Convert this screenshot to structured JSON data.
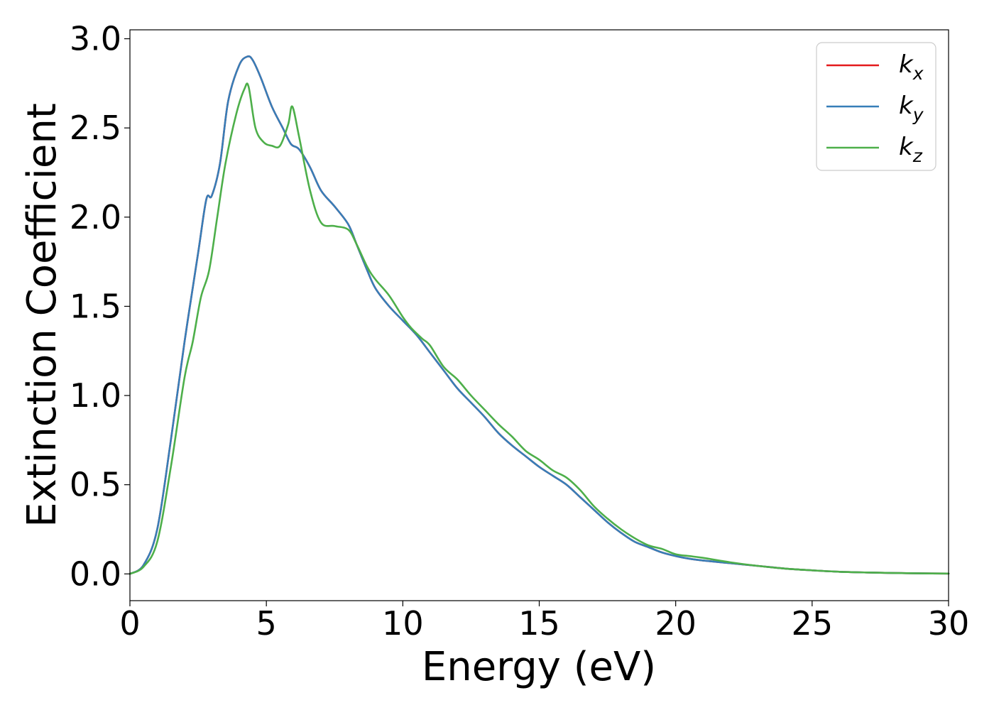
{
  "chart_data": {
    "type": "line",
    "title": "",
    "xlabel": "Energy (eV)",
    "ylabel": "Extinction Coefficient",
    "xlim": [
      0,
      30
    ],
    "ylim": [
      -0.15,
      3.05
    ],
    "xticks": [
      0,
      5,
      10,
      15,
      20,
      25,
      30
    ],
    "xtick_labels": [
      "0",
      "5",
      "10",
      "15",
      "20",
      "25",
      "30"
    ],
    "yticks": [
      0.0,
      0.5,
      1.0,
      1.5,
      2.0,
      2.5,
      3.0
    ],
    "ytick_labels": [
      "0.0",
      "0.5",
      "1.0",
      "1.5",
      "2.0",
      "2.5",
      "3.0"
    ],
    "grid": false,
    "legend_position": "top-right",
    "series": [
      {
        "name": "k_x",
        "legend_base": "k",
        "legend_sub": "x",
        "color": "#e41a1c",
        "x": [
          0,
          0.5,
          1.0,
          1.5,
          2.0,
          2.5,
          2.8,
          3.0,
          3.3,
          3.6,
          4.0,
          4.3,
          4.5,
          4.8,
          5.2,
          5.6,
          5.9,
          6.2,
          6.6,
          7.0,
          7.5,
          8.0,
          8.3,
          8.7,
          9.0,
          9.5,
          10.0,
          10.5,
          11.0,
          11.5,
          12.0,
          12.5,
          13.0,
          13.5,
          14.0,
          14.5,
          15.0,
          15.5,
          16.0,
          16.5,
          17.0,
          17.5,
          18.0,
          18.5,
          19.0,
          19.5,
          20.0,
          20.5,
          21.0,
          22.0,
          23.0,
          24.0,
          25.0,
          26.0,
          27.0,
          28.0,
          29.0,
          30.0
        ],
        "y": [
          0.0,
          0.05,
          0.25,
          0.75,
          1.3,
          1.8,
          2.1,
          2.12,
          2.3,
          2.65,
          2.85,
          2.9,
          2.88,
          2.78,
          2.62,
          2.5,
          2.41,
          2.38,
          2.28,
          2.15,
          2.06,
          1.96,
          1.85,
          1.7,
          1.6,
          1.5,
          1.42,
          1.34,
          1.24,
          1.14,
          1.04,
          0.96,
          0.88,
          0.79,
          0.72,
          0.66,
          0.6,
          0.55,
          0.5,
          0.43,
          0.36,
          0.29,
          0.23,
          0.18,
          0.15,
          0.12,
          0.1,
          0.085,
          0.075,
          0.06,
          0.045,
          0.03,
          0.02,
          0.012,
          0.008,
          0.005,
          0.003,
          0.002
        ]
      },
      {
        "name": "k_y",
        "legend_base": "k",
        "legend_sub": "y",
        "color": "#377eb8",
        "x": [
          0,
          0.5,
          1.0,
          1.5,
          2.0,
          2.5,
          2.8,
          3.0,
          3.3,
          3.6,
          4.0,
          4.3,
          4.5,
          4.8,
          5.2,
          5.6,
          5.9,
          6.2,
          6.6,
          7.0,
          7.5,
          8.0,
          8.3,
          8.7,
          9.0,
          9.5,
          10.0,
          10.5,
          11.0,
          11.5,
          12.0,
          12.5,
          13.0,
          13.5,
          14.0,
          14.5,
          15.0,
          15.5,
          16.0,
          16.5,
          17.0,
          17.5,
          18.0,
          18.5,
          19.0,
          19.5,
          20.0,
          20.5,
          21.0,
          22.0,
          23.0,
          24.0,
          25.0,
          26.0,
          27.0,
          28.0,
          29.0,
          30.0
        ],
        "y": [
          0.0,
          0.05,
          0.25,
          0.75,
          1.3,
          1.8,
          2.1,
          2.12,
          2.3,
          2.65,
          2.85,
          2.9,
          2.88,
          2.78,
          2.62,
          2.5,
          2.41,
          2.38,
          2.28,
          2.15,
          2.06,
          1.96,
          1.85,
          1.7,
          1.6,
          1.5,
          1.42,
          1.34,
          1.24,
          1.14,
          1.04,
          0.96,
          0.88,
          0.79,
          0.72,
          0.66,
          0.6,
          0.55,
          0.5,
          0.43,
          0.36,
          0.29,
          0.23,
          0.18,
          0.15,
          0.12,
          0.1,
          0.085,
          0.075,
          0.06,
          0.045,
          0.03,
          0.02,
          0.012,
          0.008,
          0.005,
          0.003,
          0.002
        ]
      },
      {
        "name": "k_z",
        "legend_base": "k",
        "legend_sub": "z",
        "color": "#4daf4a",
        "x": [
          0,
          0.5,
          1.0,
          1.5,
          2.0,
          2.3,
          2.6,
          2.9,
          3.2,
          3.5,
          3.9,
          4.2,
          4.35,
          4.6,
          4.9,
          5.2,
          5.5,
          5.8,
          5.95,
          6.2,
          6.6,
          7.0,
          7.5,
          8.0,
          8.3,
          8.7,
          9.0,
          9.5,
          10.0,
          10.3,
          10.7,
          11.0,
          11.5,
          12.0,
          12.5,
          13.0,
          13.5,
          14.0,
          14.5,
          15.0,
          15.5,
          16.0,
          16.5,
          17.0,
          17.5,
          18.0,
          18.5,
          19.0,
          19.5,
          20.0,
          20.5,
          21.0,
          22.0,
          23.0,
          24.0,
          25.0,
          26.0,
          27.0,
          28.0,
          29.0,
          30.0
        ],
        "y": [
          0.0,
          0.04,
          0.18,
          0.6,
          1.1,
          1.3,
          1.55,
          1.7,
          2.0,
          2.3,
          2.58,
          2.72,
          2.73,
          2.5,
          2.42,
          2.4,
          2.4,
          2.52,
          2.62,
          2.45,
          2.15,
          1.97,
          1.95,
          1.93,
          1.85,
          1.72,
          1.65,
          1.56,
          1.44,
          1.38,
          1.32,
          1.28,
          1.16,
          1.09,
          1.0,
          0.92,
          0.84,
          0.77,
          0.69,
          0.64,
          0.58,
          0.54,
          0.47,
          0.38,
          0.31,
          0.25,
          0.2,
          0.16,
          0.14,
          0.11,
          0.1,
          0.09,
          0.065,
          0.045,
          0.03,
          0.02,
          0.012,
          0.008,
          0.005,
          0.003,
          0.002
        ]
      }
    ]
  }
}
